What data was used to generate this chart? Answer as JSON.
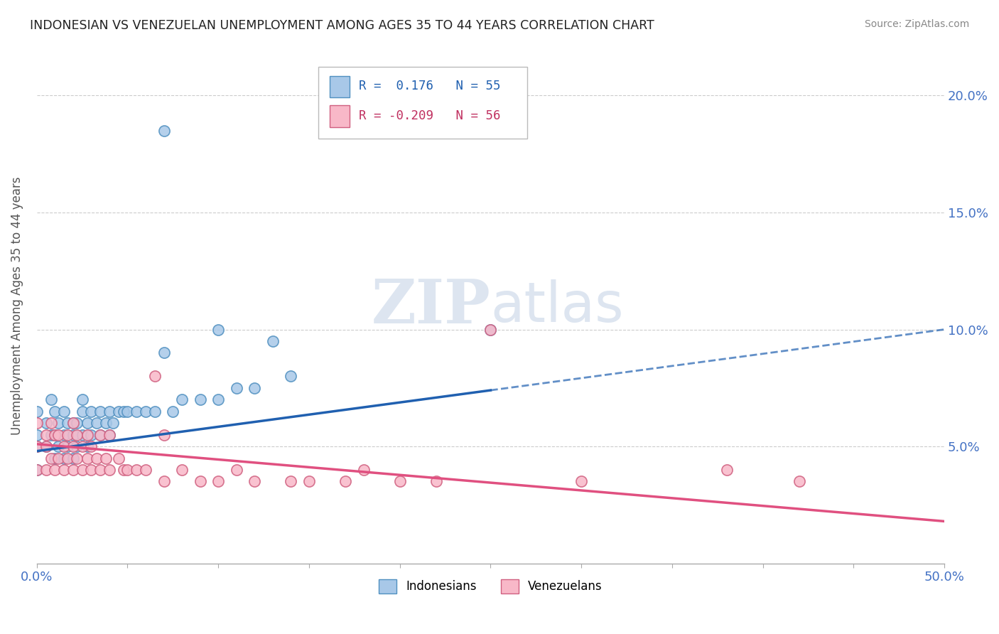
{
  "title": "INDONESIAN VS VENEZUELAN UNEMPLOYMENT AMONG AGES 35 TO 44 YEARS CORRELATION CHART",
  "source": "Source: ZipAtlas.com",
  "ylabel": "Unemployment Among Ages 35 to 44 years",
  "xlim": [
    0,
    0.5
  ],
  "ylim": [
    0,
    0.22
  ],
  "R_indonesian": 0.176,
  "N_indonesian": 55,
  "R_venezuelan": -0.209,
  "N_venezuelan": 56,
  "indonesian_color": "#a8c8e8",
  "indonesian_edge": "#5090c0",
  "venezuelan_color": "#f8b8c8",
  "venezuelan_edge": "#d06080",
  "indonesian_line_color": "#2060b0",
  "venezuelan_line_color": "#e05080",
  "watermark_color": "#dde5f0",
  "indonesian_x": [
    0.0,
    0.0,
    0.0,
    0.0,
    0.005,
    0.005,
    0.008,
    0.008,
    0.01,
    0.01,
    0.01,
    0.012,
    0.012,
    0.015,
    0.015,
    0.015,
    0.017,
    0.017,
    0.02,
    0.02,
    0.02,
    0.022,
    0.022,
    0.025,
    0.025,
    0.025,
    0.028,
    0.028,
    0.03,
    0.03,
    0.033,
    0.035,
    0.035,
    0.038,
    0.04,
    0.04,
    0.042,
    0.045,
    0.048,
    0.05,
    0.055,
    0.06,
    0.065,
    0.07,
    0.075,
    0.08,
    0.09,
    0.1,
    0.11,
    0.12,
    0.13,
    0.14,
    0.07,
    0.1,
    0.25
  ],
  "indonesian_y": [
    0.05,
    0.04,
    0.055,
    0.065,
    0.05,
    0.06,
    0.055,
    0.07,
    0.045,
    0.055,
    0.065,
    0.05,
    0.06,
    0.045,
    0.055,
    0.065,
    0.05,
    0.06,
    0.045,
    0.055,
    0.06,
    0.05,
    0.06,
    0.055,
    0.065,
    0.07,
    0.05,
    0.06,
    0.055,
    0.065,
    0.06,
    0.055,
    0.065,
    0.06,
    0.055,
    0.065,
    0.06,
    0.065,
    0.065,
    0.065,
    0.065,
    0.065,
    0.065,
    0.185,
    0.065,
    0.07,
    0.07,
    0.07,
    0.075,
    0.075,
    0.095,
    0.08,
    0.09,
    0.1,
    0.1
  ],
  "venezuelan_x": [
    0.0,
    0.0,
    0.0,
    0.005,
    0.005,
    0.005,
    0.008,
    0.008,
    0.01,
    0.01,
    0.012,
    0.012,
    0.015,
    0.015,
    0.017,
    0.017,
    0.02,
    0.02,
    0.02,
    0.022,
    0.022,
    0.025,
    0.025,
    0.028,
    0.028,
    0.03,
    0.03,
    0.033,
    0.035,
    0.035,
    0.038,
    0.04,
    0.04,
    0.045,
    0.048,
    0.05,
    0.055,
    0.06,
    0.065,
    0.07,
    0.07,
    0.08,
    0.09,
    0.1,
    0.11,
    0.12,
    0.14,
    0.15,
    0.17,
    0.18,
    0.2,
    0.22,
    0.25,
    0.3,
    0.38,
    0.42
  ],
  "venezuelan_y": [
    0.04,
    0.05,
    0.06,
    0.04,
    0.05,
    0.055,
    0.045,
    0.06,
    0.04,
    0.055,
    0.045,
    0.055,
    0.04,
    0.05,
    0.045,
    0.055,
    0.04,
    0.05,
    0.06,
    0.045,
    0.055,
    0.04,
    0.05,
    0.045,
    0.055,
    0.04,
    0.05,
    0.045,
    0.04,
    0.055,
    0.045,
    0.04,
    0.055,
    0.045,
    0.04,
    0.04,
    0.04,
    0.04,
    0.08,
    0.035,
    0.055,
    0.04,
    0.035,
    0.035,
    0.04,
    0.035,
    0.035,
    0.035,
    0.035,
    0.04,
    0.035,
    0.035,
    0.1,
    0.035,
    0.04,
    0.035
  ],
  "indo_line_x0": 0.0,
  "indo_line_y0": 0.048,
  "indo_line_x1": 0.5,
  "indo_line_y1": 0.1,
  "vene_line_x0": 0.0,
  "vene_line_y0": 0.051,
  "vene_line_x1": 0.5,
  "vene_line_y1": 0.018
}
